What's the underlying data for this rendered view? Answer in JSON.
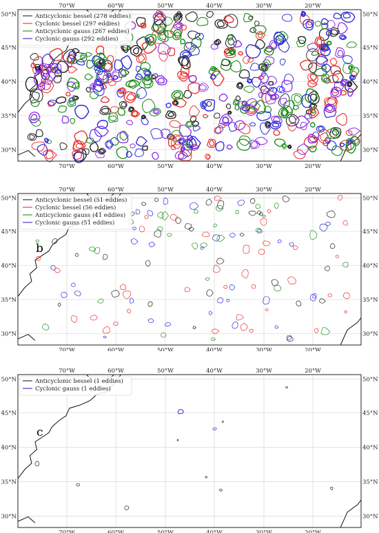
{
  "colors": {
    "anticyclonic_bessel": "#222222",
    "cyclonic_bessel": "#e8322e",
    "anticyclonic_gauss": "#1d8f1d",
    "cyclonic_gauss": "#2b2bd9",
    "overlap_purple": "#8a2be2"
  },
  "axes": {
    "x_ticks": [
      "70°W",
      "60°W",
      "50°W",
      "40°W",
      "30°W",
      "20°W"
    ],
    "y_ticks": [
      "50°N",
      "45°N",
      "40°N",
      "35°N",
      "30°N"
    ]
  },
  "panels": [
    {
      "letter": "a",
      "legend": [
        {
          "label": "Anticyclonic bessel (278 eddies)",
          "color_key": "anticyclonic_bessel"
        },
        {
          "label": "Cyclonic bessel (297 eddies)",
          "color_key": "cyclonic_bessel"
        },
        {
          "label": "Anticyclonic gauss (267 eddies)",
          "color_key": "anticyclonic_gauss"
        },
        {
          "label": "Cyclonic gauss (292 eddies)",
          "color_key": "cyclonic_gauss"
        }
      ]
    },
    {
      "letter": "b",
      "legend": [
        {
          "label": "Anticyclonic bessel (51 eddies)",
          "color_key": "anticyclonic_bessel"
        },
        {
          "label": "Cyclonic bessel (56 eddies)",
          "color_key": "cyclonic_bessel"
        },
        {
          "label": "Anticyclonic gauss (41 eddies)",
          "color_key": "anticyclonic_gauss"
        },
        {
          "label": "Cyclonic gauss (51 eddies)",
          "color_key": "cyclonic_gauss"
        }
      ]
    },
    {
      "letter": "c",
      "legend": [
        {
          "label": "Anticyclonic bessel (1 eddies)",
          "color_key": "anticyclonic_bessel"
        },
        {
          "label": "Cyclonic gauss (1 eddies)",
          "color_key": "cyclonic_gauss"
        }
      ]
    }
  ]
}
